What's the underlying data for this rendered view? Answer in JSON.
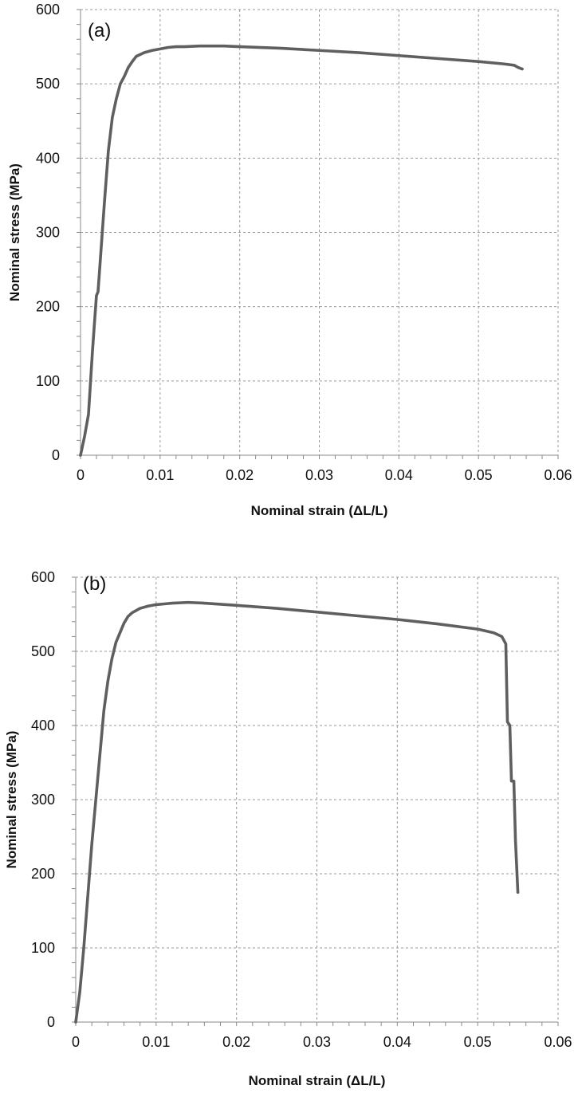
{
  "colors": {
    "curve": "#5f5f5f",
    "grid": "#9a9a9a",
    "axis": "#8a8a8a"
  },
  "chart_data": [
    {
      "type": "line",
      "panel_label": "(a)",
      "xlabel": "Nominal strain (ΔL/L)",
      "ylabel": "Nominal  stress (MPa)",
      "xlim": [
        0,
        0.06
      ],
      "ylim": [
        0,
        600
      ],
      "x_ticks": [
        "0",
        "0.01",
        "0.02",
        "0.03",
        "0.04",
        "0.05",
        "0.06"
      ],
      "y_ticks": [
        "0",
        "100",
        "200",
        "300",
        "400",
        "500",
        "600"
      ],
      "grid": true,
      "series": [
        {
          "x": [
            0,
            0.0005,
            0.001,
            0.0015,
            0.002,
            0.0022,
            0.0025,
            0.003,
            0.0035,
            0.004,
            0.0045,
            0.005,
            0.0055,
            0.006,
            0.0065,
            0.007,
            0.008,
            0.009,
            0.01,
            0.011,
            0.012,
            0.013,
            0.015,
            0.018,
            0.02,
            0.025,
            0.03,
            0.035,
            0.04,
            0.045,
            0.05,
            0.053,
            0.0545,
            0.055,
            0.0555
          ],
          "y": [
            0,
            25,
            55,
            140,
            215,
            220,
            265,
            340,
            410,
            455,
            480,
            500,
            510,
            522,
            530,
            537,
            542,
            545,
            547,
            549,
            550,
            550,
            551,
            551,
            550,
            548,
            545,
            542,
            538,
            534,
            530,
            527,
            525,
            522,
            520
          ]
        }
      ]
    },
    {
      "type": "line",
      "panel_label": "(b)",
      "xlabel": "Nominal strain (ΔL/L)",
      "ylabel": "Nominal  stress (MPa)",
      "xlim": [
        0,
        0.06
      ],
      "ylim": [
        0,
        600
      ],
      "x_ticks": [
        "0",
        "0.01",
        "0.02",
        "0.03",
        "0.04",
        "0.05",
        "0.06"
      ],
      "y_ticks": [
        "0",
        "100",
        "200",
        "300",
        "400",
        "500",
        "600"
      ],
      "grid": true,
      "series": [
        {
          "x": [
            0,
            0.0005,
            0.001,
            0.0015,
            0.002,
            0.0025,
            0.003,
            0.0035,
            0.004,
            0.0045,
            0.005,
            0.0055,
            0.006,
            0.0065,
            0.007,
            0.008,
            0.009,
            0.01,
            0.011,
            0.012,
            0.014,
            0.016,
            0.02,
            0.025,
            0.03,
            0.035,
            0.04,
            0.045,
            0.05,
            0.052,
            0.053,
            0.0535,
            0.0537,
            0.054,
            0.0542,
            0.0545,
            0.0547,
            0.055
          ],
          "y": [
            0,
            40,
            100,
            170,
            240,
            300,
            360,
            420,
            460,
            490,
            512,
            525,
            538,
            547,
            552,
            558,
            561,
            563,
            564,
            565,
            566,
            565,
            562,
            558,
            553,
            548,
            543,
            537,
            530,
            525,
            520,
            510,
            405,
            400,
            325,
            325,
            245,
            175
          ]
        }
      ]
    }
  ]
}
